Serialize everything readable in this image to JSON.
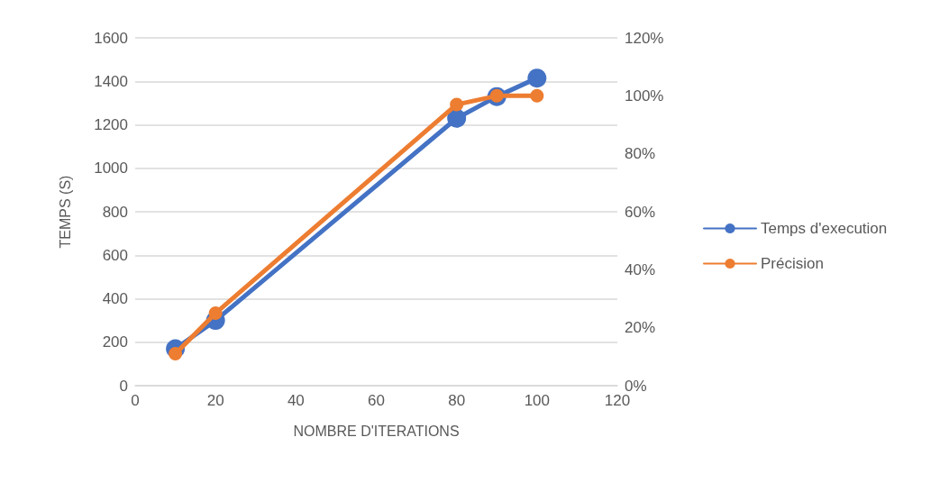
{
  "chart_data": {
    "type": "line",
    "xlabel": "NOMBRE D'ITERATIONS",
    "ylabel": "TEMPS (S)",
    "x": [
      10,
      20,
      80,
      90,
      100
    ],
    "series": [
      {
        "name": "Temps d'execution",
        "color": "#4472c4",
        "values": [
          170,
          300,
          1230,
          1330,
          1415
        ]
      },
      {
        "name": "Précision",
        "color": "#ed7d31",
        "values": [
          11,
          25,
          97,
          100,
          100
        ],
        "axis": "y2"
      }
    ],
    "xlim": [
      0,
      120
    ],
    "xticks": [
      0,
      20,
      40,
      60,
      80,
      100,
      120
    ],
    "ylim": [
      0,
      1600
    ],
    "yticks": [
      0,
      200,
      400,
      600,
      800,
      1000,
      1200,
      1400,
      1600
    ],
    "y2lim": [
      0,
      120
    ],
    "y2ticks": [
      {
        "value": 0,
        "label": "0%"
      },
      {
        "value": 20,
        "label": "20%"
      },
      {
        "value": 40,
        "label": "40%"
      },
      {
        "value": 60,
        "label": "60%"
      },
      {
        "value": 80,
        "label": "80%"
      },
      {
        "value": 100,
        "label": "100%"
      },
      {
        "value": 120,
        "label": "120%"
      }
    ],
    "grid": "y",
    "legend": "right",
    "marker": "circle",
    "line_style": "solid"
  }
}
